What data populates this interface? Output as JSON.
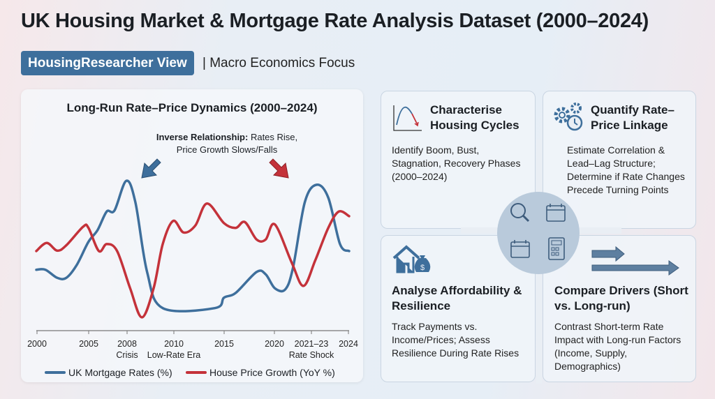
{
  "title": "UK Housing Market & Mortgage Rate Analysis Dataset (2000–2024)",
  "badge": "HousingResearcher View",
  "focus": "| Macro Economics Focus",
  "colors": {
    "rates": "#3e6f9c",
    "prices": "#c4323a",
    "badge": "#3e6f9c"
  },
  "chart_data": {
    "type": "line",
    "title": "Long-Run Rate–Price Dynamics (2000–2024)",
    "annotation_bold": "Inverse Relationship:",
    "annotation_rest": "Rates Rise, Price Growth Slows/Falls",
    "xlabel": "",
    "ylabel": "",
    "xlim": [
      2000,
      2024
    ],
    "ylim_relative": [
      0,
      11
    ],
    "grid": false,
    "legend_placement": "bottom",
    "x_ticks": [
      {
        "year": 2000,
        "label": "2000",
        "sub": ""
      },
      {
        "year": 2005,
        "label": "2005",
        "sub": ""
      },
      {
        "year": 2008,
        "label": "2008",
        "sub": "Crisis"
      },
      {
        "year": 2010,
        "label": "2010",
        "sub": "Low-Rate Era"
      },
      {
        "year": 2015,
        "label": "2015",
        "sub": ""
      },
      {
        "year": 2020,
        "label": "2020",
        "sub": ""
      },
      {
        "year": 2022,
        "label": "2021–23",
        "sub": "Rate Shock"
      },
      {
        "year": 2024,
        "label": "2024",
        "sub": ""
      }
    ],
    "series": [
      {
        "name": "UK Mortgage Rates (%)",
        "color": "#3e6f9c",
        "x": [
          2000,
          2000.7,
          2001.6,
          2002.3,
          2003.1,
          2004,
          2004.7,
          2005.4,
          2006,
          2006.9,
          2007.6,
          2008.5,
          2009.7,
          2013.7,
          2014.4,
          2015.3,
          2016.9,
          2017.6,
          2018.3,
          2019.1,
          2019.7,
          2020.6,
          2021.5,
          2022.4,
          2023.3,
          2024
        ],
        "y": [
          3.83,
          3.83,
          3.25,
          3.25,
          4.17,
          5.83,
          6.67,
          8.0,
          8.08,
          10.2,
          8.67,
          3.67,
          1.08,
          1.08,
          1.83,
          2.17,
          3.67,
          3.5,
          2.5,
          2.42,
          4.0,
          8.67,
          9.92,
          9.0,
          5.67,
          5.17
        ]
      },
      {
        "name": "House Price Growth (YoY %)",
        "color": "#c4323a",
        "x": [
          2000,
          2000.8,
          2001.6,
          2002.3,
          2003.6,
          2004,
          2004.8,
          2005.4,
          2006.2,
          2007.2,
          2008.1,
          2009,
          2009.7,
          2010.5,
          2011.3,
          2012.2,
          2013.1,
          2014.4,
          2015.3,
          2016,
          2016.9,
          2017.6,
          2018.3,
          2019.6,
          2020.5,
          2021.4,
          2022.4,
          2023.2,
          2024
        ],
        "y": [
          5.17,
          5.75,
          5.2,
          5.58,
          6.92,
          6.83,
          5.17,
          5.67,
          5.17,
          2.5,
          0.42,
          2.5,
          5.67,
          7.33,
          6.5,
          7.0,
          8.58,
          7.17,
          6.83,
          7.25,
          6.0,
          6.0,
          7.08,
          4.33,
          2.67,
          4.5,
          6.83,
          8.0,
          7.67
        ]
      }
    ]
  },
  "cards": [
    {
      "title": "Characterise Housing Cycles",
      "body": "Identify Boom, Bust, Stagnation, Recovery Phases (2000–2024)",
      "icon": "cycle-chart-icon"
    },
    {
      "title": "Quantify Rate–Price Linkage",
      "body": "Estimate Correlation & Lead–Lag Structure; Determine if Rate Changes Precede Turning Points",
      "icon": "gears-clock-icon"
    },
    {
      "title": "Analyse Affordability & Resilience",
      "body": "Track Payments vs. Income/Prices; Assess Resilience During Rate Rises",
      "icon": "house-money-icon"
    },
    {
      "title": "Compare Drivers (Short vs. Long-run)",
      "body": "Contrast Short-term Rate Impact with Long-run Factors (Income, Supply, Demographics)",
      "icon": "arrows-icon"
    }
  ]
}
